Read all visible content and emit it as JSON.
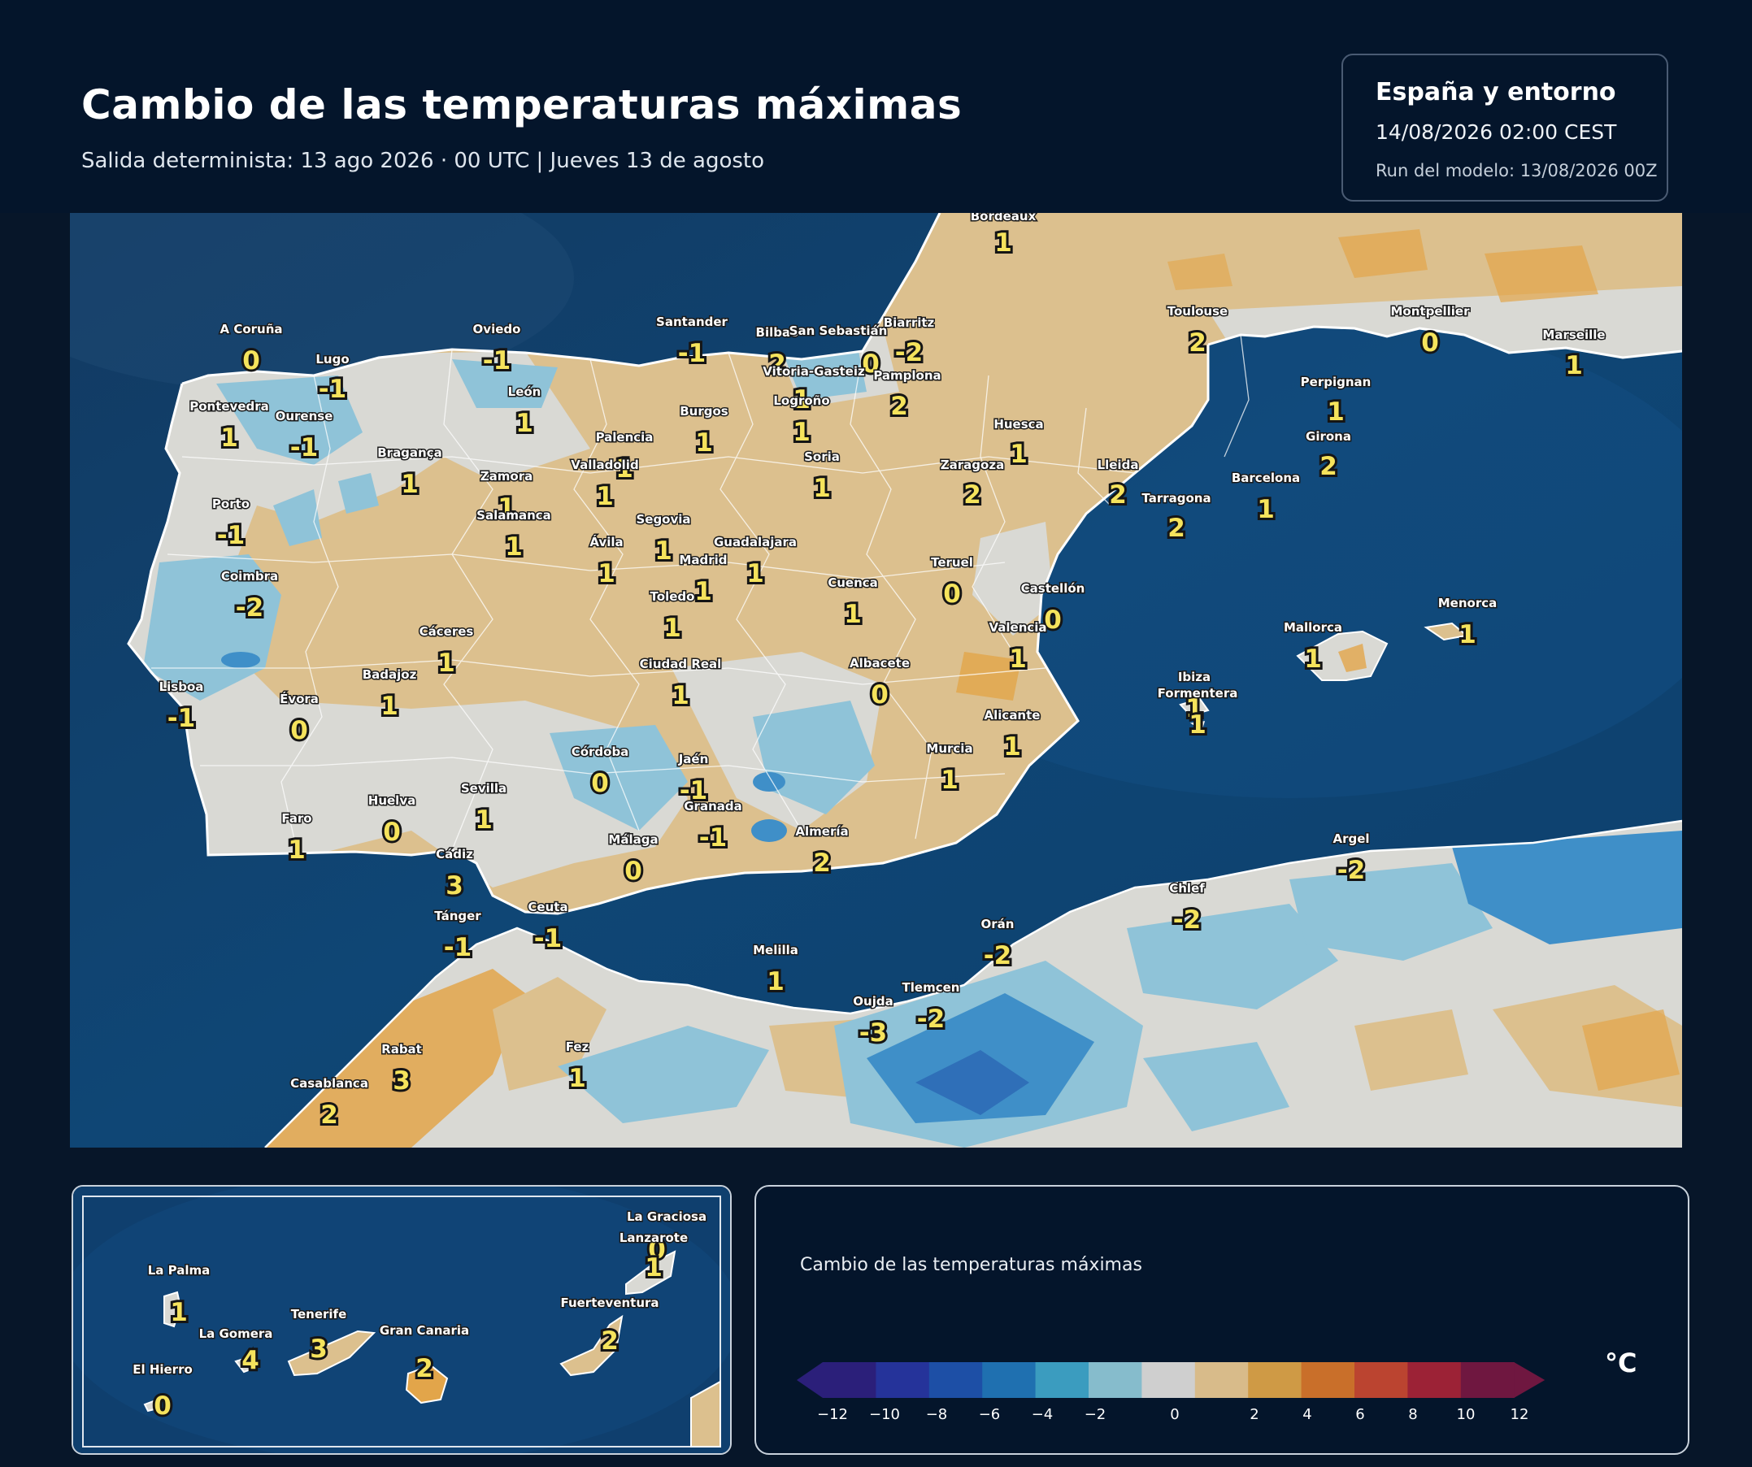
{
  "header": {
    "title": "Cambio de las temperaturas máximas",
    "subtitle": "Salida determinista: 13 ago 2026 · 00 UTC  |  Jueves 13 de agosto"
  },
  "info_box": {
    "region": "España y entorno",
    "valid_time": "14/08/2026  02:00 CEST",
    "model_run": "Run del modelo: 13/08/2026 00Z"
  },
  "colors": {
    "sea": "#0f3f6e",
    "land_neutral": "#d9d9d4",
    "land_warm": "#dcc08e",
    "land_warmer": "#e2a54a",
    "land_cool": "#8fc3d8",
    "land_cold": "#3f8fc8",
    "label_value": "#f5e35c"
  },
  "cities": [
    {
      "name": "Bordeaux",
      "value": "1"
    },
    {
      "name": "Biarritz",
      "value": "-2"
    },
    {
      "name": "Toulouse",
      "value": "2"
    },
    {
      "name": "Montpellier",
      "value": "0"
    },
    {
      "name": "Marseille",
      "value": "1"
    },
    {
      "name": "Perpignan",
      "value": "1"
    },
    {
      "name": "Girona",
      "value": "2"
    },
    {
      "name": "Barcelona",
      "value": "1"
    },
    {
      "name": "Tarragona",
      "value": "2"
    },
    {
      "name": "Lleida",
      "value": "2"
    },
    {
      "name": "Huesca",
      "value": "1"
    },
    {
      "name": "Zaragoza",
      "value": "2"
    },
    {
      "name": "A Coruña",
      "value": "0"
    },
    {
      "name": "Lugo",
      "value": "-1"
    },
    {
      "name": "Oviedo",
      "value": "-1"
    },
    {
      "name": "Santander",
      "value": "-1"
    },
    {
      "name": "Bilbao",
      "value": "2"
    },
    {
      "name": "San Sebastián",
      "value": "0"
    },
    {
      "name": "Vitoria-Gasteiz",
      "value": "1"
    },
    {
      "name": "Pamplona",
      "value": "2"
    },
    {
      "name": "Logroño",
      "value": "1"
    },
    {
      "name": "Pontevedra",
      "value": "1"
    },
    {
      "name": "Ourense",
      "value": "-1"
    },
    {
      "name": "León",
      "value": "1"
    },
    {
      "name": "Burgos",
      "value": "1"
    },
    {
      "name": "Palencia",
      "value": "1"
    },
    {
      "name": "Soria",
      "value": "1"
    },
    {
      "name": "Bragança",
      "value": "1"
    },
    {
      "name": "Zamora",
      "value": "1"
    },
    {
      "name": "Valladolid",
      "value": "1"
    },
    {
      "name": "Salamanca",
      "value": "1"
    },
    {
      "name": "Segovia",
      "value": "1"
    },
    {
      "name": "Porto",
      "value": "-1"
    },
    {
      "name": "Ávila",
      "value": "1"
    },
    {
      "name": "Guadalajara",
      "value": "1"
    },
    {
      "name": "Madrid",
      "value": "1"
    },
    {
      "name": "Teruel",
      "value": "0"
    },
    {
      "name": "Coimbra",
      "value": "-2"
    },
    {
      "name": "Cuenca",
      "value": "1"
    },
    {
      "name": "Toledo",
      "value": "1"
    },
    {
      "name": "Castellón",
      "value": "0"
    },
    {
      "name": "Valencia",
      "value": "1"
    },
    {
      "name": "Cáceres",
      "value": "1"
    },
    {
      "name": "Badajoz",
      "value": "1"
    },
    {
      "name": "Ciudad Real",
      "value": "1"
    },
    {
      "name": "Albacete",
      "value": "0"
    },
    {
      "name": "Lisboa",
      "value": "-1"
    },
    {
      "name": "Évora",
      "value": "0"
    },
    {
      "name": "Alicante",
      "value": "1"
    },
    {
      "name": "Murcia",
      "value": "1"
    },
    {
      "name": "Córdoba",
      "value": "0"
    },
    {
      "name": "Jaén",
      "value": "-1"
    },
    {
      "name": "Huelva",
      "value": "0"
    },
    {
      "name": "Sevilla",
      "value": "1"
    },
    {
      "name": "Granada",
      "value": "-1"
    },
    {
      "name": "Faro",
      "value": "1"
    },
    {
      "name": "Málaga",
      "value": "0"
    },
    {
      "name": "Almería",
      "value": "2"
    },
    {
      "name": "Cádiz",
      "value": "3"
    },
    {
      "name": "Tánger",
      "value": "-1"
    },
    {
      "name": "Ceuta",
      "value": "-1"
    },
    {
      "name": "Melilla",
      "value": "1"
    },
    {
      "name": "Rabat",
      "value": "3"
    },
    {
      "name": "Casablanca",
      "value": "2"
    },
    {
      "name": "Fez",
      "value": "1"
    },
    {
      "name": "Oujda",
      "value": "-3"
    },
    {
      "name": "Tlemcen",
      "value": "-2"
    },
    {
      "name": "Orán",
      "value": "-2"
    },
    {
      "name": "Chlef",
      "value": "-2"
    },
    {
      "name": "Argel",
      "value": "-2"
    },
    {
      "name": "Mallorca",
      "value": "1"
    },
    {
      "name": "Menorca",
      "value": "1"
    },
    {
      "name": "Ibiza",
      "value": "1"
    },
    {
      "name": "Formentera",
      "value": "1"
    }
  ],
  "canary_inset": [
    {
      "name": "La Graciosa",
      "value": "0"
    },
    {
      "name": "Lanzarote",
      "value": "1"
    },
    {
      "name": "La Palma",
      "value": "1"
    },
    {
      "name": "Fuerteventura",
      "value": "2"
    },
    {
      "name": "Tenerife",
      "value": "3"
    },
    {
      "name": "La Gomera",
      "value": "4"
    },
    {
      "name": "Gran Canaria",
      "value": "2"
    },
    {
      "name": "El Hierro",
      "value": "0"
    }
  ],
  "legend": {
    "title": "Cambio de las temperaturas máximas",
    "unit": "°C",
    "ticks": [
      "−12",
      "−10",
      "−8",
      "−6",
      "−4",
      "−2",
      "0",
      "2",
      "4",
      "6",
      "8",
      "10",
      "12"
    ],
    "colors": [
      "#2b1f7a",
      "#25339a",
      "#1d4fa6",
      "#1f70b0",
      "#3b9cbf",
      "#86bccc",
      "#cfcfcf",
      "#d8bb8a",
      "#cf9a45",
      "#c96f2a",
      "#bb4430",
      "#9c2236",
      "#6f1740"
    ]
  }
}
